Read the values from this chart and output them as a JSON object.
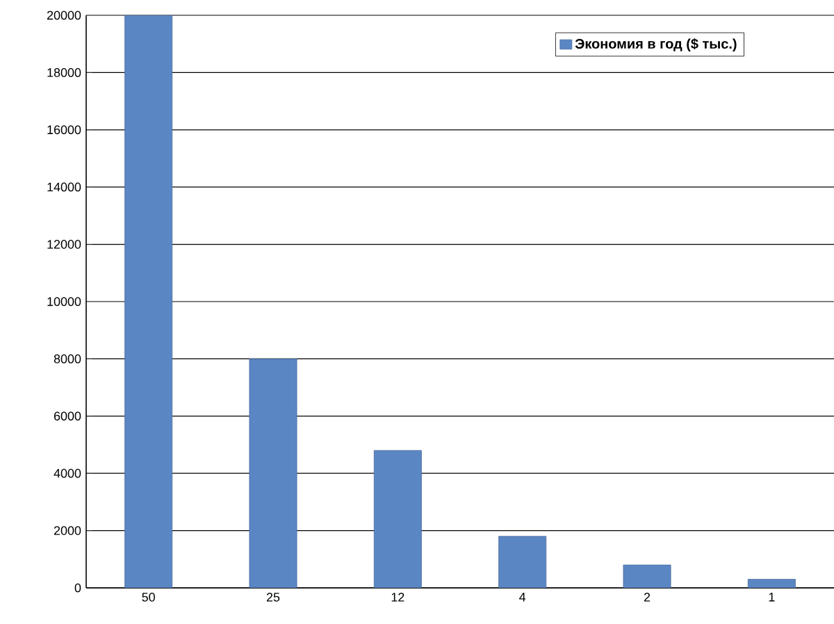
{
  "chart_data": {
    "type": "bar",
    "categories": [
      "50",
      "25",
      "12",
      "4",
      "2",
      "1"
    ],
    "series": [
      {
        "name": "Экономия в год ($ тыс.)",
        "color": "#5b86c4",
        "values": [
          20000,
          8000,
          4800,
          1800,
          800,
          300
        ]
      }
    ],
    "ylim": [
      0,
      20000
    ],
    "yticks": [
      0,
      2000,
      4000,
      6000,
      8000,
      10000,
      12000,
      14000,
      16000,
      18000,
      20000
    ],
    "grid": "y",
    "legend": "top right"
  }
}
